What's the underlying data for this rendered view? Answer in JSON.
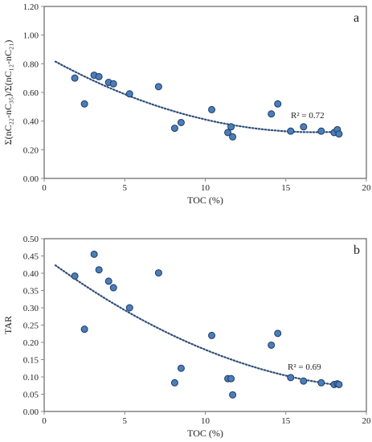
{
  "colors": {
    "point_fill": "#4a7ebb",
    "point_stroke": "#1f3a5f",
    "trend": "#2e4d7a",
    "axis": "#888888",
    "frame": "#444444"
  },
  "chart_data": [
    {
      "type": "scatter",
      "panel_label": "a",
      "xlabel": "TOC (%)",
      "ylabel": "Σ(nC₂₂-nC₃₅)/Σ(nC₁₂-nC₂₁)",
      "xlim": [
        0,
        20
      ],
      "ylim": [
        0,
        1.2
      ],
      "xticks": [
        "0",
        "5",
        "10",
        "15",
        "20"
      ],
      "yticks": [
        "0.00",
        "0.20",
        "0.40",
        "0.60",
        "0.80",
        "1.00",
        "1.20"
      ],
      "points": {
        "x": [
          1.9,
          2.5,
          3.1,
          3.4,
          4.0,
          4.3,
          5.3,
          7.1,
          8.1,
          8.5,
          10.4,
          11.4,
          11.6,
          11.7,
          14.1,
          14.5,
          15.3,
          16.1,
          17.2,
          18.0,
          18.2,
          18.3
        ],
        "y": [
          0.7,
          0.52,
          0.72,
          0.71,
          0.67,
          0.66,
          0.59,
          0.64,
          0.35,
          0.39,
          0.48,
          0.32,
          0.36,
          0.29,
          0.45,
          0.52,
          0.33,
          0.36,
          0.33,
          0.32,
          0.34,
          0.31
        ]
      },
      "trendline": {
        "type": "polynomial",
        "x_range": [
          0.7,
          18.3
        ],
        "coeffs": [
          0.859,
          -0.0637,
          0.00189
        ]
      },
      "r_squared_label": "R² = 0.72"
    },
    {
      "type": "scatter",
      "panel_label": "b",
      "xlabel": "TOC (%)",
      "ylabel": "TAR",
      "xlim": [
        0,
        20
      ],
      "ylim": [
        0,
        0.5
      ],
      "xticks": [
        "0",
        "5",
        "10",
        "15",
        "20"
      ],
      "yticks": [
        "0.00",
        "0.05",
        "0.10",
        "0.15",
        "0.20",
        "0.25",
        "0.30",
        "0.35",
        "0.40",
        "0.45",
        "0.50"
      ],
      "points": {
        "x": [
          1.9,
          2.5,
          3.1,
          3.4,
          4.0,
          4.3,
          5.3,
          7.1,
          8.1,
          8.5,
          10.4,
          11.4,
          11.6,
          11.7,
          14.1,
          14.5,
          15.3,
          16.1,
          17.2,
          18.0,
          18.2,
          18.3
        ],
        "y": [
          0.392,
          0.238,
          0.455,
          0.41,
          0.377,
          0.358,
          0.3,
          0.401,
          0.083,
          0.125,
          0.22,
          0.095,
          0.095,
          0.048,
          0.192,
          0.226,
          0.098,
          0.088,
          0.083,
          0.078,
          0.08,
          0.078
        ]
      },
      "trendline": {
        "type": "polynomial",
        "x_range": [
          0.7,
          18.3
        ],
        "coeffs": [
          0.447,
          -0.0347,
          0.000788
        ]
      },
      "r_squared_label": "R² = 0.69"
    }
  ]
}
